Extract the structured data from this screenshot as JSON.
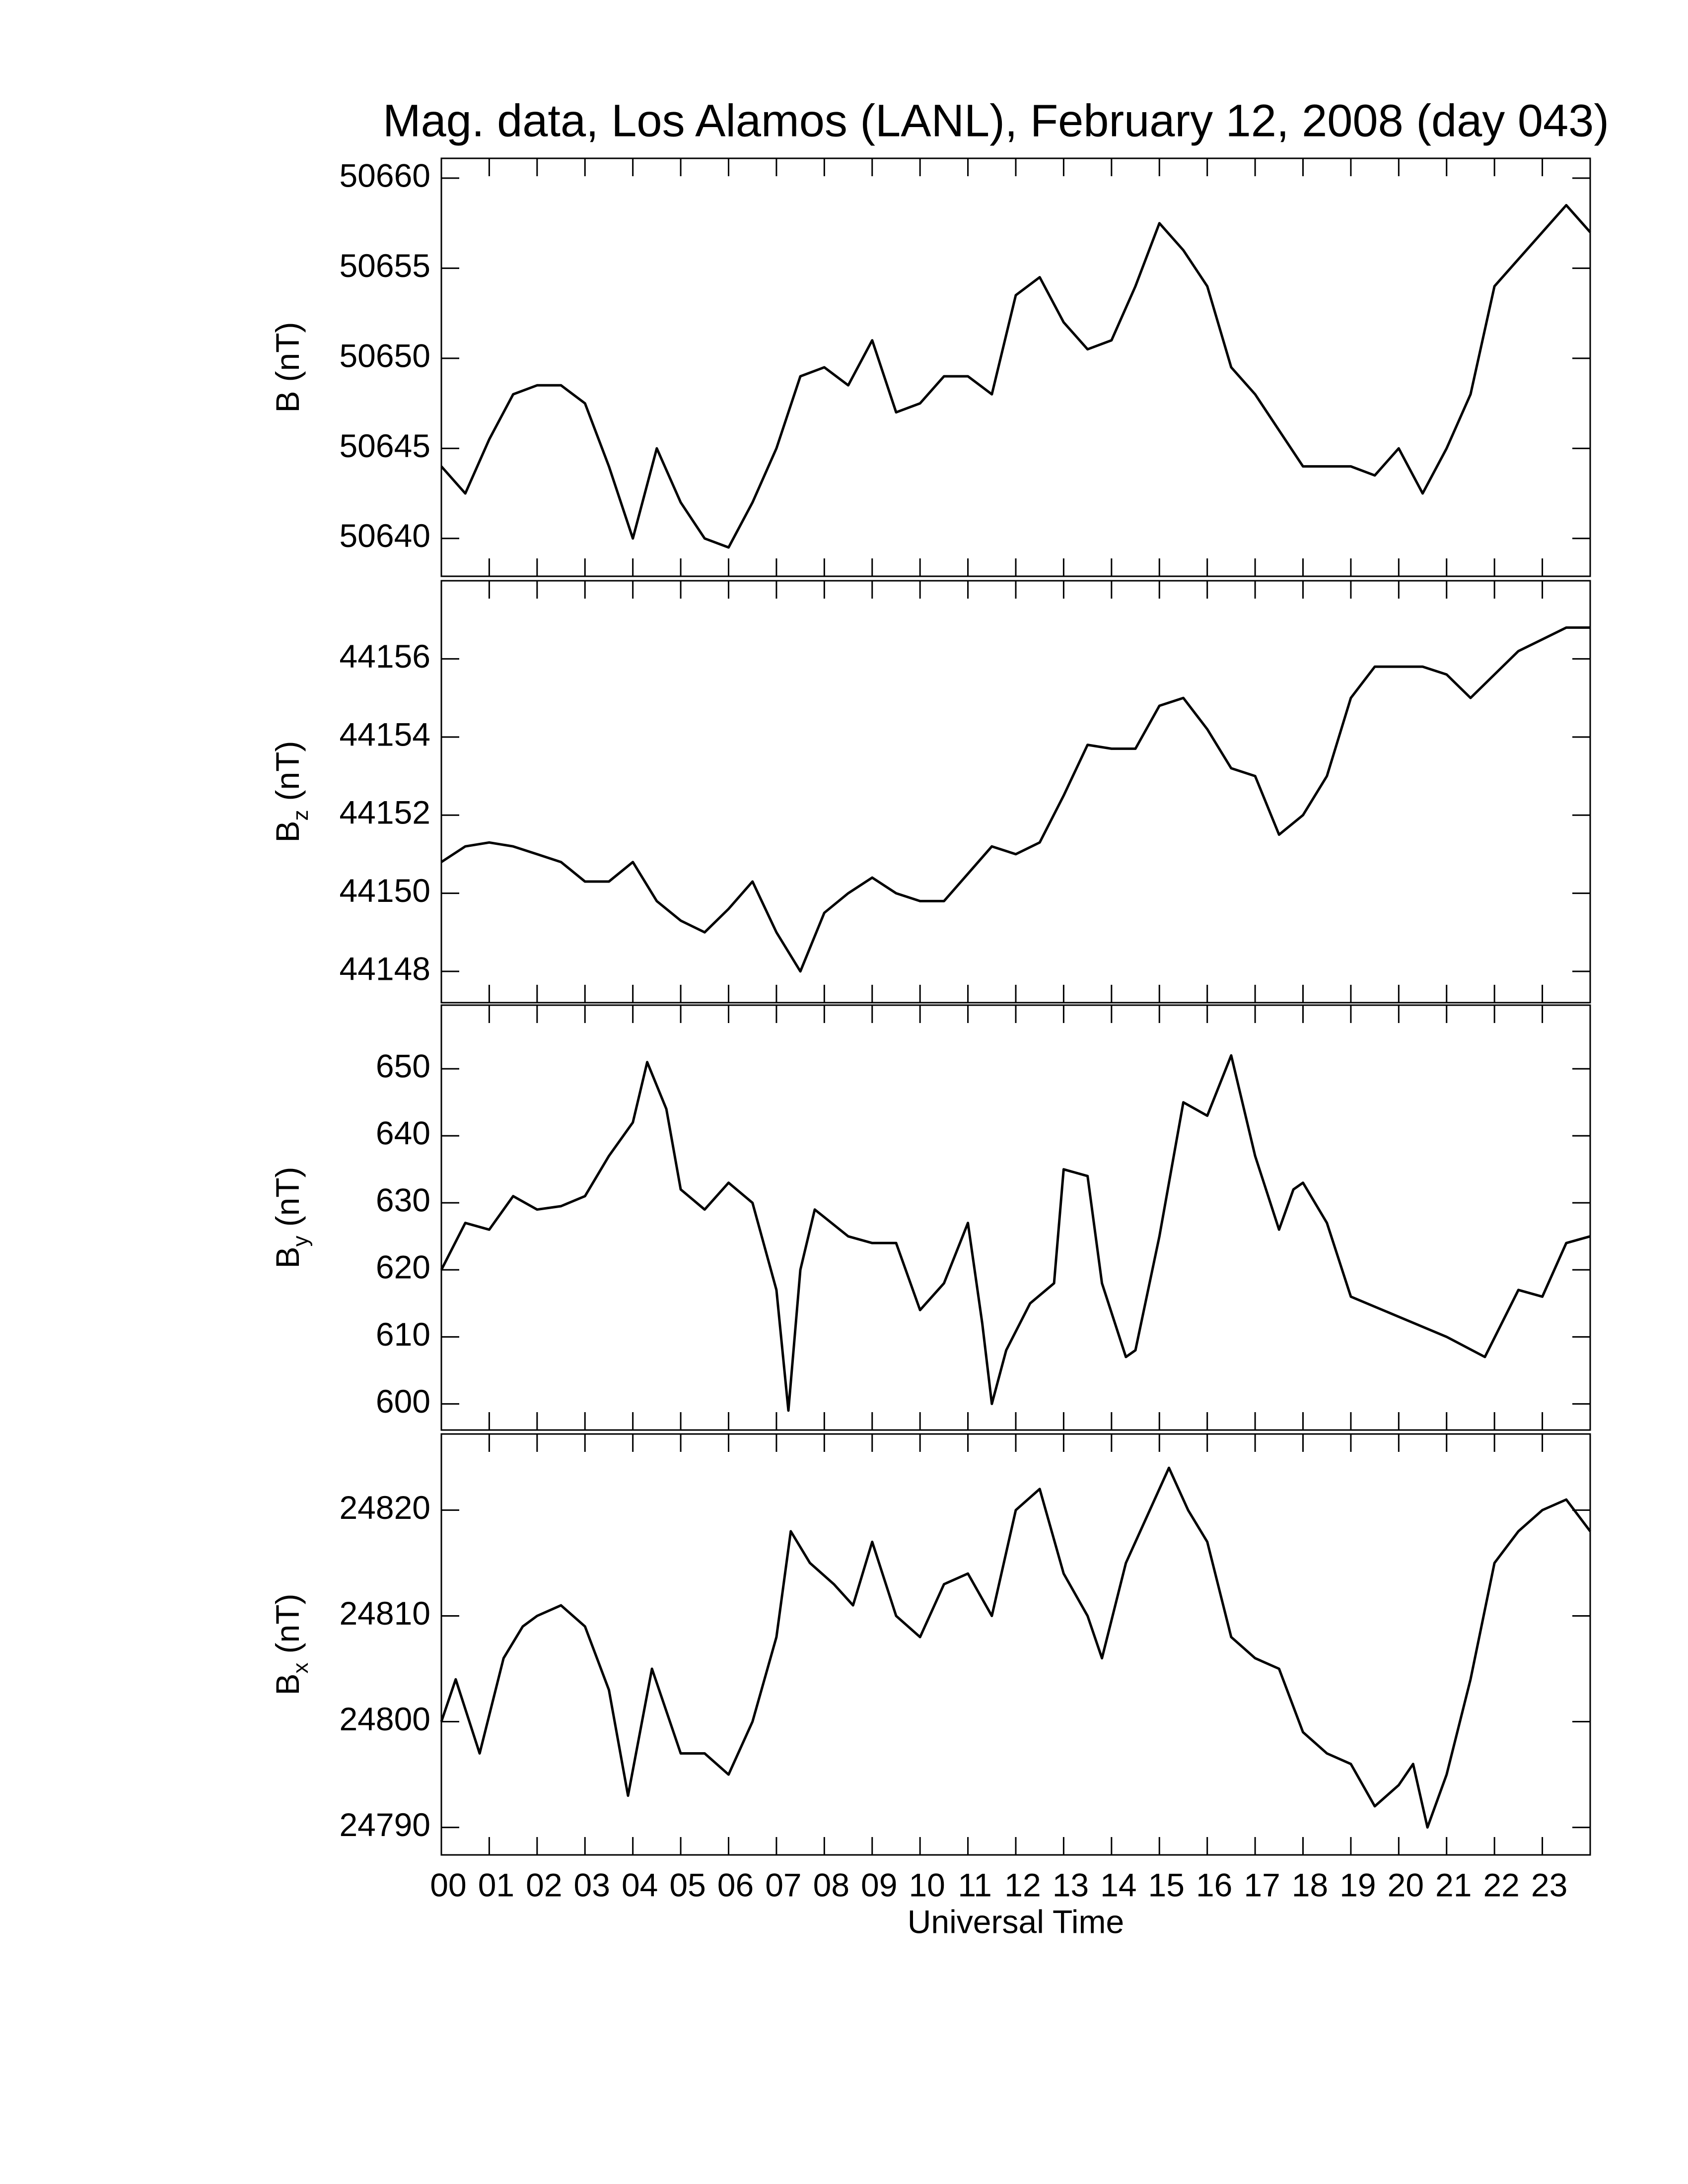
{
  "chart_data": [
    {
      "type": "line",
      "title": "Mag. data, Los Alamos (LANL), February 12, 2008 (day 043)",
      "ylabel": "B",
      "ylabel_unit": "(nT)",
      "x": [
        0,
        0.5,
        1,
        1.5,
        2,
        2.5,
        3,
        3.5,
        4,
        4.5,
        5,
        5.5,
        6,
        6.5,
        7,
        7.5,
        8,
        8.5,
        9,
        9.5,
        10,
        10.5,
        11,
        11.5,
        12,
        12.5,
        13,
        13.5,
        14,
        14.5,
        15,
        15.5,
        16,
        16.5,
        17,
        17.5,
        18,
        18.5,
        19,
        19.5,
        20,
        20.5,
        21,
        21.5,
        22,
        22.5,
        23,
        23.5,
        24
      ],
      "series": [
        {
          "color": "#000000",
          "values": [
            50644,
            50642.5,
            50645.5,
            50648,
            50648.5,
            50648.5,
            50647.5,
            50644,
            50640,
            50645,
            50642,
            50640,
            50639.5,
            50642,
            50645,
            50649,
            50649.5,
            50648.5,
            50651,
            50647,
            50647.5,
            50649,
            50649,
            50648,
            50653.5,
            50654.5,
            50652,
            50650.5,
            50651,
            50654,
            50657.5,
            50656,
            50654,
            50649.5,
            50648,
            50646,
            50644,
            50644,
            50644,
            50643.5,
            50645,
            50642.5,
            50645,
            50648,
            50654,
            50655.5,
            50657,
            50658.5,
            50657
          ]
        }
      ],
      "xlim": [
        0,
        24
      ],
      "ylim": [
        50637.9,
        50661.1
      ],
      "yticks": [
        50640,
        50645,
        50650,
        50655,
        50660
      ]
    },
    {
      "type": "line",
      "ylabel": "B",
      "ylabel_sub": "z",
      "ylabel_unit": "(nT)",
      "x": [
        0,
        0.5,
        1,
        1.5,
        2,
        2.5,
        3,
        3.5,
        4,
        4.5,
        5,
        5.5,
        6,
        6.5,
        7,
        7.5,
        8,
        8.5,
        9,
        9.5,
        10,
        10.5,
        11,
        11.5,
        12,
        12.5,
        13,
        13.5,
        14,
        14.5,
        15,
        15.5,
        16,
        16.5,
        17,
        17.5,
        18,
        18.5,
        19,
        19.5,
        20,
        20.5,
        21,
        21.5,
        22,
        22.5,
        23,
        23.5,
        24
      ],
      "series": [
        {
          "color": "#000000",
          "values": [
            44150.8,
            44151.2,
            44151.3,
            44151.2,
            44151,
            44150.8,
            44150.3,
            44150.3,
            44150.8,
            44149.8,
            44149.3,
            44149,
            44149.6,
            44150.3,
            44149,
            44148,
            44149.5,
            44150,
            44150.4,
            44150,
            44149.8,
            44149.8,
            44150.5,
            44151.2,
            44151,
            44151.3,
            44152.5,
            44153.8,
            44153.7,
            44153.7,
            44154.8,
            44155,
            44154.2,
            44153.2,
            44153,
            44151.5,
            44152,
            44153,
            44155,
            44155.8,
            44155.8,
            44155.8,
            44155.6,
            44155,
            44155.6,
            44156.2,
            44156.5,
            44156.8,
            44156.8
          ]
        }
      ],
      "xlim": [
        0,
        24
      ],
      "ylim": [
        44147.2,
        44158.0
      ],
      "yticks": [
        44148,
        44150,
        44152,
        44154,
        44156
      ]
    },
    {
      "type": "line",
      "ylabel": "B",
      "ylabel_sub": "y",
      "ylabel_unit": "(nT)",
      "x": [
        0,
        0.5,
        1,
        1.5,
        2,
        2.5,
        3,
        3.5,
        4,
        4.3,
        4.7,
        5,
        5.5,
        6,
        6.5,
        7,
        7.25,
        7.5,
        7.8,
        8.5,
        9,
        9.5,
        10,
        10.5,
        11,
        11.3,
        11.5,
        11.8,
        12.3,
        12.8,
        13,
        13.5,
        13.8,
        14.3,
        14.5,
        15,
        15.5,
        16,
        16.5,
        17,
        17.5,
        17.8,
        18,
        18.5,
        19,
        20,
        21,
        21.8,
        22.5,
        23,
        23.5,
        24
      ],
      "series": [
        {
          "color": "#000000",
          "values": [
            620,
            627,
            626,
            631,
            629,
            629.5,
            631,
            637,
            642,
            651,
            644,
            632,
            629,
            633,
            630,
            617,
            599,
            620,
            629,
            625,
            624,
            624,
            614,
            618,
            627,
            612,
            600,
            608,
            615,
            618,
            635,
            634,
            618,
            607,
            608,
            625,
            645,
            643,
            652,
            637,
            626,
            632,
            633,
            627,
            616,
            613,
            610,
            607,
            617,
            616,
            624,
            625
          ]
        }
      ],
      "xlim": [
        0,
        24
      ],
      "ylim": [
        596.1,
        659.5
      ],
      "yticks": [
        600,
        610,
        620,
        630,
        640,
        650
      ]
    },
    {
      "type": "line",
      "ylabel": "B",
      "ylabel_sub": "x",
      "ylabel_unit": "(nT)",
      "xlabel": "Universal Time",
      "x": [
        0,
        0.3,
        0.8,
        1.3,
        1.7,
        2,
        2.5,
        3,
        3.5,
        3.9,
        4.4,
        5,
        5.5,
        6,
        6.5,
        7,
        7.3,
        7.7,
        8.2,
        8.6,
        9,
        9.5,
        10,
        10.5,
        11,
        11.5,
        12,
        12.5,
        13,
        13.5,
        13.8,
        14.3,
        14.8,
        15.2,
        15.6,
        16,
        16.5,
        17,
        17.5,
        18,
        18.5,
        19,
        19.5,
        20,
        20.3,
        20.6,
        21,
        21.5,
        22,
        22.5,
        23,
        23.5,
        24
      ],
      "series": [
        {
          "color": "#000000",
          "values": [
            24800,
            24804,
            24797,
            24806,
            24809,
            24810,
            24811,
            24809,
            24803,
            24793,
            24805,
            24797,
            24797,
            24795,
            24800,
            24808,
            24818,
            24815,
            24813,
            24811,
            24817,
            24810,
            24808,
            24813,
            24814,
            24810,
            24820,
            24822,
            24814,
            24810,
            24806,
            24815,
            24820,
            24824,
            24820,
            24817,
            24808,
            24806,
            24805,
            24799,
            24797,
            24796,
            24792,
            24794,
            24796,
            24790,
            24795,
            24804,
            24815,
            24818,
            24820,
            24821,
            24818
          ]
        }
      ],
      "xlim": [
        0,
        24
      ],
      "ylim": [
        24787.4,
        24827.2
      ],
      "yticks": [
        24790,
        24800,
        24810,
        24820
      ],
      "xticks": [
        {
          "value": 0,
          "label": "00"
        },
        {
          "value": 1,
          "label": "01"
        },
        {
          "value": 2,
          "label": "02"
        },
        {
          "value": 3,
          "label": "03"
        },
        {
          "value": 4,
          "label": "04"
        },
        {
          "value": 5,
          "label": "05"
        },
        {
          "value": 6,
          "label": "06"
        },
        {
          "value": 7,
          "label": "07"
        },
        {
          "value": 8,
          "label": "08"
        },
        {
          "value": 9,
          "label": "09"
        },
        {
          "value": 10,
          "label": "10"
        },
        {
          "value": 11,
          "label": "11"
        },
        {
          "value": 12,
          "label": "12"
        },
        {
          "value": 13,
          "label": "13"
        },
        {
          "value": 14,
          "label": "14"
        },
        {
          "value": 15,
          "label": "15"
        },
        {
          "value": 16,
          "label": "16"
        },
        {
          "value": 17,
          "label": "17"
        },
        {
          "value": 18,
          "label": "18"
        },
        {
          "value": 19,
          "label": "19"
        },
        {
          "value": 20,
          "label": "20"
        },
        {
          "value": 21,
          "label": "21"
        },
        {
          "value": 22,
          "label": "22"
        },
        {
          "value": 23,
          "label": "23"
        }
      ]
    }
  ]
}
